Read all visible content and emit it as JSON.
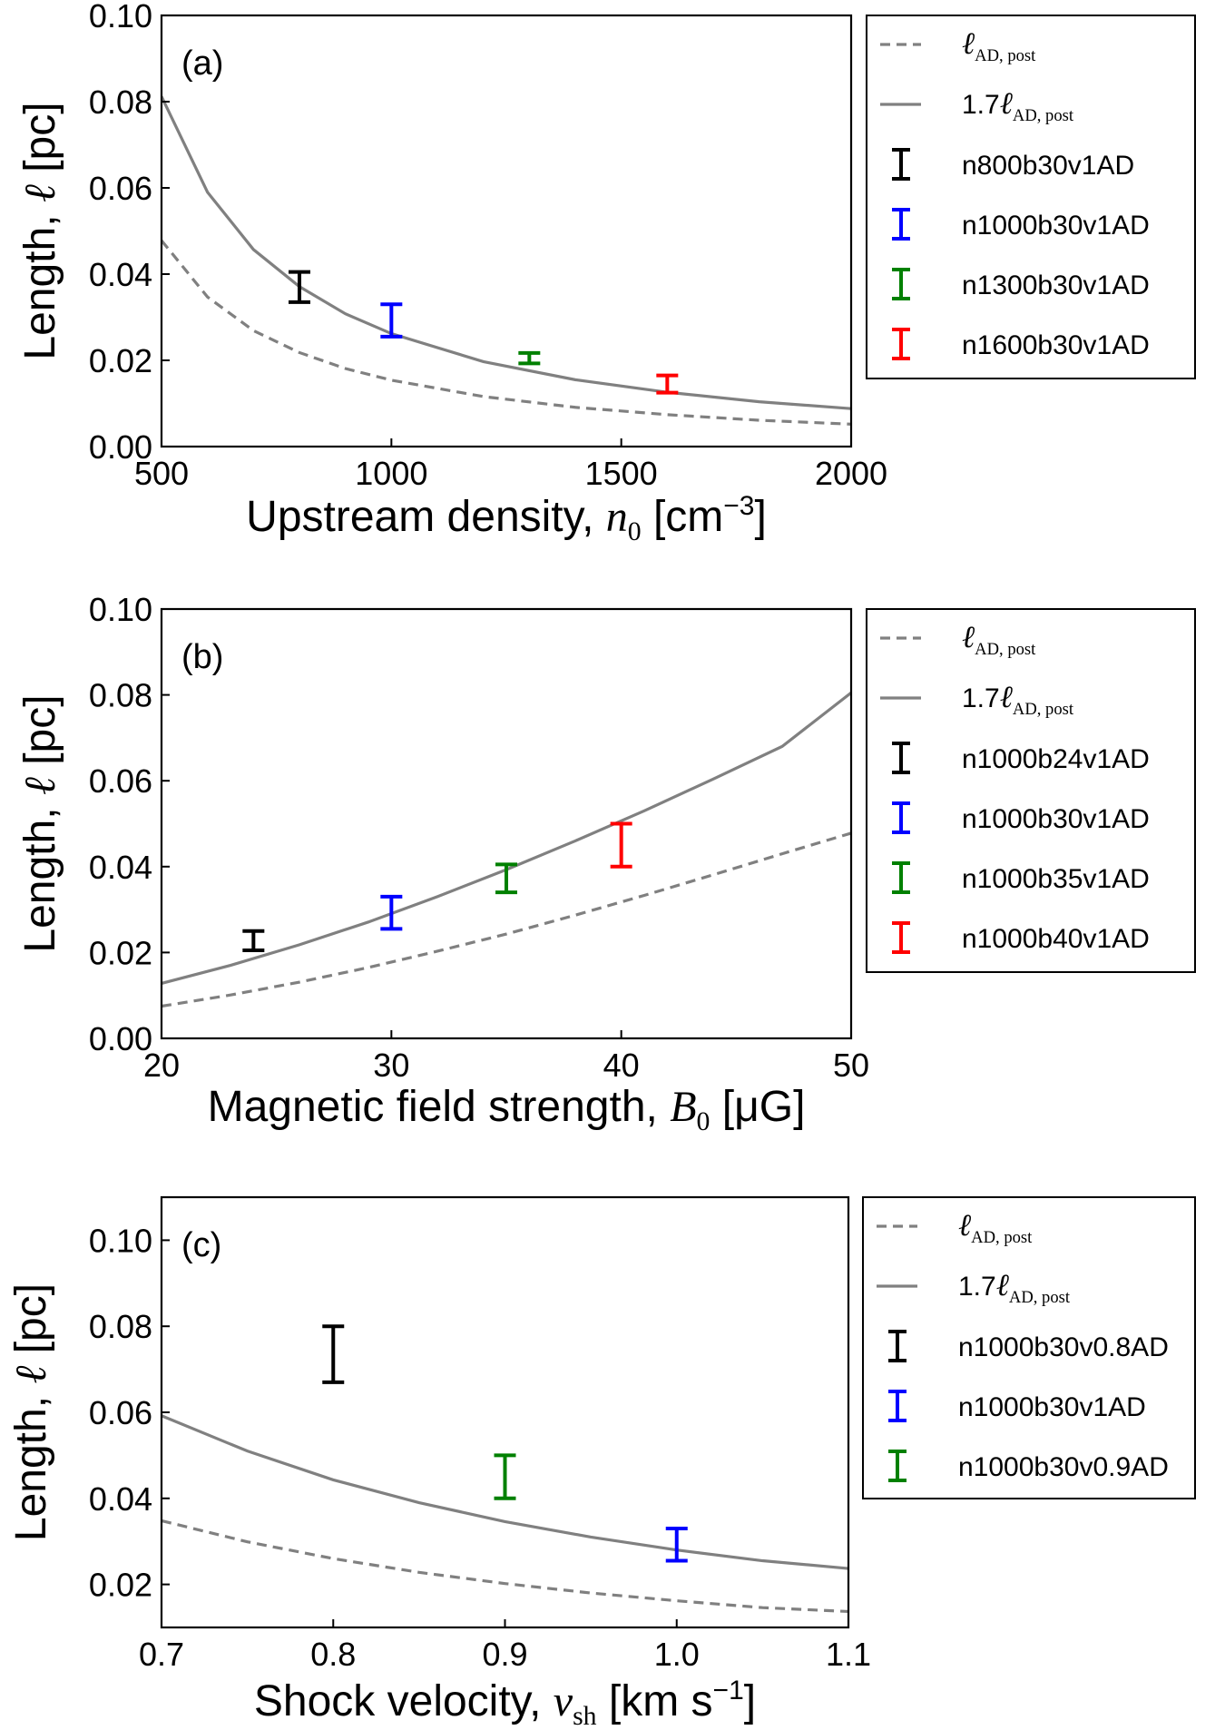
{
  "chart_data": [
    {
      "type": "line",
      "panel_label": "(a)",
      "xlabel": {
        "prefix": "Upstream density, ",
        "var": "n",
        "sub": "0",
        "suffix": " [cm",
        "sup": "−3",
        "close": "]"
      },
      "ylabel": {
        "prefix": "Length, ",
        "var": "ℓ",
        "suffix": " [pc]"
      },
      "xlim": [
        500,
        2000
      ],
      "ylim": [
        0.0,
        0.1
      ],
      "xticks": [
        500,
        1000,
        1500,
        2000
      ],
      "xtick_labels": [
        "500",
        "1000",
        "1500",
        "2000"
      ],
      "yticks": [
        0.0,
        0.02,
        0.04,
        0.06,
        0.08,
        0.1
      ],
      "ytick_labels": [
        "0.00",
        "0.02",
        "0.04",
        "0.06",
        "0.08",
        "0.10"
      ],
      "curves": [
        {
          "label": "ℓ",
          "label_sub": "AD, post",
          "style": "dashed",
          "color": "#808080",
          "x": [
            500,
            600,
            700,
            800,
            900,
            1000,
            1200,
            1400,
            1600,
            1800,
            2000
          ],
          "y": [
            0.0478,
            0.0347,
            0.0269,
            0.0218,
            0.0181,
            0.0154,
            0.0116,
            0.0091,
            0.0074,
            0.0061,
            0.0052
          ]
        },
        {
          "label": "1.7ℓ",
          "label_sub": "AD, post",
          "style": "solid",
          "color": "#808080",
          "x": [
            500,
            600,
            700,
            800,
            900,
            1000,
            1200,
            1400,
            1600,
            1800,
            2000
          ],
          "y": [
            0.0812,
            0.059,
            0.0457,
            0.0371,
            0.0308,
            0.0262,
            0.0197,
            0.0155,
            0.0126,
            0.0104,
            0.0088
          ]
        }
      ],
      "points": [
        {
          "name": "n800b30v1AD",
          "color": "#000000",
          "x": 800,
          "ylow": 0.0335,
          "yhigh": 0.0405
        },
        {
          "name": "n1000b30v1AD",
          "color": "#0000ff",
          "x": 1000,
          "ylow": 0.0255,
          "yhigh": 0.033
        },
        {
          "name": "n1300b30v1AD",
          "color": "#008000",
          "x": 1300,
          "ylow": 0.0193,
          "yhigh": 0.0217
        },
        {
          "name": "n1600b30v1AD",
          "color": "#ff0000",
          "x": 1600,
          "ylow": 0.0125,
          "yhigh": 0.0165
        }
      ]
    },
    {
      "type": "line",
      "panel_label": "(b)",
      "xlabel": {
        "prefix": "Magnetic field strength, ",
        "var": "B",
        "sub": "0",
        "suffix": " [μG]",
        "sup": "",
        "close": ""
      },
      "ylabel": {
        "prefix": "Length, ",
        "var": "ℓ",
        "suffix": " [pc]"
      },
      "xlim": [
        20,
        50
      ],
      "ylim": [
        0.0,
        0.1
      ],
      "xticks": [
        20,
        30,
        40,
        50
      ],
      "xtick_labels": [
        "20",
        "30",
        "40",
        "50"
      ],
      "yticks": [
        0.0,
        0.02,
        0.04,
        0.06,
        0.08,
        0.1
      ],
      "ytick_labels": [
        "0.00",
        "0.02",
        "0.04",
        "0.06",
        "0.08",
        "0.10"
      ],
      "curves": [
        {
          "label": "ℓ",
          "label_sub": "AD, post",
          "style": "dashed",
          "color": "#808080",
          "x": [
            20,
            23,
            26,
            29,
            32,
            35,
            38,
            41,
            44,
            47,
            50
          ],
          "y": [
            0.0075,
            0.0101,
            0.0131,
            0.0165,
            0.0203,
            0.0243,
            0.0287,
            0.0333,
            0.0381,
            0.043,
            0.0478
          ]
        },
        {
          "label": "1.7ℓ",
          "label_sub": "AD, post",
          "style": "solid",
          "color": "#808080",
          "x": [
            20,
            23,
            26,
            29,
            32,
            35,
            38,
            41,
            44,
            47,
            50
          ],
          "y": [
            0.0128,
            0.017,
            0.0218,
            0.0271,
            0.033,
            0.0393,
            0.046,
            0.053,
            0.0604,
            0.068,
            0.0805
          ]
        }
      ],
      "points": [
        {
          "name": "n1000b24v1AD",
          "color": "#000000",
          "x": 24,
          "ylow": 0.0205,
          "yhigh": 0.025
        },
        {
          "name": "n1000b30v1AD",
          "color": "#0000ff",
          "x": 30,
          "ylow": 0.0255,
          "yhigh": 0.033
        },
        {
          "name": "n1000b35v1AD",
          "color": "#008000",
          "x": 35,
          "ylow": 0.034,
          "yhigh": 0.0405
        },
        {
          "name": "n1000b40v1AD",
          "color": "#ff0000",
          "x": 40,
          "ylow": 0.04,
          "yhigh": 0.05
        }
      ]
    },
    {
      "type": "line",
      "panel_label": "(c)",
      "xlabel": {
        "prefix": "Shock velocity, ",
        "var": "v",
        "sub": "sh",
        "suffix": " [km s",
        "sup": "−1",
        "close": "]"
      },
      "ylabel": {
        "prefix": "Length, ",
        "var": "ℓ",
        "suffix": " [pc]"
      },
      "xlim": [
        0.7,
        1.1
      ],
      "ylim": [
        0.01,
        0.11
      ],
      "xticks": [
        0.7,
        0.8,
        0.9,
        1.0,
        1.1
      ],
      "xtick_labels": [
        "0.7",
        "0.8",
        "0.9",
        "1.0",
        "1.1"
      ],
      "yticks": [
        0.02,
        0.04,
        0.06,
        0.08,
        0.1
      ],
      "ytick_labels": [
        "0.02",
        "0.04",
        "0.06",
        "0.08",
        "0.10"
      ],
      "curves": [
        {
          "label": "ℓ",
          "label_sub": "AD, post",
          "style": "dashed",
          "color": "#808080",
          "x": [
            0.7,
            0.75,
            0.8,
            0.85,
            0.9,
            0.95,
            1.0,
            1.05,
            1.1
          ],
          "y": [
            0.0348,
            0.0299,
            0.026,
            0.0228,
            0.0202,
            0.018,
            0.0162,
            0.0146,
            0.0137
          ]
        },
        {
          "label": "1.7ℓ",
          "label_sub": "AD, post",
          "style": "solid",
          "color": "#808080",
          "x": [
            0.7,
            0.75,
            0.8,
            0.85,
            0.9,
            0.95,
            1.0,
            1.05,
            1.1
          ],
          "y": [
            0.0592,
            0.051,
            0.0443,
            0.039,
            0.0346,
            0.031,
            0.028,
            0.0255,
            0.0237
          ]
        }
      ],
      "points": [
        {
          "name": "n1000b30v0.8AD",
          "color": "#000000",
          "x": 0.8,
          "ylow": 0.067,
          "yhigh": 0.08
        },
        {
          "name": "n1000b30v1AD",
          "color": "#0000ff",
          "x": 1.0,
          "ylow": 0.0255,
          "yhigh": 0.033
        },
        {
          "name": "n1000b30v0.9AD",
          "color": "#008000",
          "x": 0.9,
          "ylow": 0.04,
          "yhigh": 0.05
        }
      ]
    }
  ]
}
